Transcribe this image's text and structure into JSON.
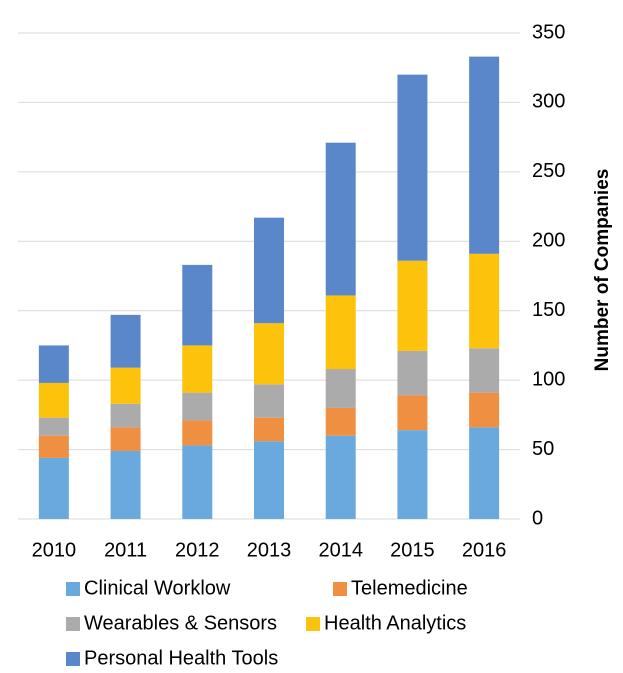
{
  "chart_data": {
    "type": "stacked_bar",
    "y_label": "Number of Companies",
    "categories": [
      "2010",
      "2011",
      "2012",
      "2013",
      "2014",
      "2015",
      "2016"
    ],
    "series": [
      {
        "name": "Clinical Worklow",
        "color": "#6aa9de",
        "values": [
          44,
          49,
          53,
          56,
          60,
          64,
          66
        ]
      },
      {
        "name": "Telemedicine",
        "color": "#ef8f42",
        "values": [
          16,
          17,
          18,
          17,
          20,
          25,
          25
        ]
      },
      {
        "name": "Wearables & Sensors",
        "color": "#ababab",
        "values": [
          13,
          17,
          20,
          24,
          28,
          32,
          32
        ]
      },
      {
        "name": "Health Analytics",
        "color": "#fdc30c",
        "values": [
          25,
          26,
          34,
          44,
          53,
          65,
          68
        ]
      },
      {
        "name": "Personal Health Tools",
        "color": "#5a87c9",
        "values": [
          27,
          38,
          58,
          76,
          110,
          134,
          142
        ]
      }
    ],
    "ylim": [
      0,
      350
    ],
    "yticks": [
      0,
      50,
      100,
      150,
      200,
      250,
      300,
      350
    ],
    "grid": true,
    "y_axis_side": "right"
  }
}
